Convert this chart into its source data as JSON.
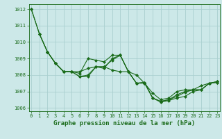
{
  "title": "Graphe pression niveau de la mer (hPa)",
  "background_color": "#cce8e8",
  "grid_color": "#aacfcf",
  "line_color": "#1a6b1a",
  "ylim": [
    1005.8,
    1012.3
  ],
  "xlim": [
    -0.3,
    23.3
  ],
  "yticks": [
    1006,
    1007,
    1008,
    1009,
    1010,
    1011,
    1012
  ],
  "xticks": [
    0,
    1,
    2,
    3,
    4,
    5,
    6,
    7,
    8,
    9,
    10,
    11,
    12,
    13,
    14,
    15,
    16,
    17,
    18,
    19,
    20,
    21,
    22,
    23
  ],
  "series": [
    {
      "x": [
        0,
        1,
        2,
        3,
        4,
        5,
        6,
        7,
        8,
        9,
        10,
        11,
        12,
        13,
        14,
        15,
        16,
        17,
        18,
        19,
        20,
        21,
        22,
        23
      ],
      "y": [
        1012.0,
        1010.5,
        1009.4,
        1008.7,
        1008.2,
        1008.2,
        1008.2,
        1008.4,
        1008.5,
        1008.5,
        1008.3,
        1008.2,
        1008.2,
        1008.0,
        1007.5,
        1006.9,
        1006.5,
        1006.6,
        1007.0,
        1007.1,
        1007.1,
        1007.1,
        1007.5,
        1007.6
      ],
      "marker": "D",
      "markersize": 2.0
    },
    {
      "x": [
        0,
        1,
        2,
        3,
        4,
        5,
        6,
        7,
        8,
        9,
        10,
        11,
        12,
        13,
        14,
        15,
        16,
        17,
        18,
        19,
        20,
        21,
        22,
        23
      ],
      "y": [
        1012.0,
        1010.5,
        1009.4,
        1008.7,
        1008.2,
        1008.2,
        1008.1,
        1009.0,
        1008.9,
        1008.8,
        1009.2,
        1009.2,
        1008.2,
        1007.5,
        1007.5,
        1006.6,
        1006.4,
        1006.5,
        1006.8,
        1007.0,
        1007.1,
        1007.35,
        1007.5,
        1007.6
      ],
      "marker": "D",
      "markersize": 2.0
    },
    {
      "x": [
        1,
        2,
        3,
        4,
        5,
        6,
        7,
        8,
        9,
        10,
        11,
        12,
        13,
        14,
        15,
        16,
        17,
        18,
        19,
        20,
        21,
        22,
        23
      ],
      "y": [
        1010.5,
        1009.4,
        1008.7,
        1008.2,
        1008.2,
        1007.9,
        1008.0,
        1008.5,
        1008.4,
        1009.0,
        1009.2,
        1008.2,
        1007.5,
        1007.55,
        1006.6,
        1006.4,
        1006.5,
        1006.7,
        1006.95,
        1007.1,
        1007.1,
        1007.5,
        1007.55
      ],
      "marker": "D",
      "markersize": 2.0
    },
    {
      "x": [
        2,
        3,
        4,
        5,
        6,
        7,
        8,
        9,
        10,
        11,
        12,
        13,
        14,
        15,
        16,
        17,
        18,
        19,
        20,
        21,
        22,
        23
      ],
      "y": [
        1009.4,
        1008.7,
        1008.2,
        1008.2,
        1007.9,
        1007.9,
        1008.5,
        1008.5,
        1008.9,
        1009.2,
        1008.2,
        1007.5,
        1007.55,
        1006.6,
        1006.35,
        1006.45,
        1006.6,
        1006.7,
        1007.0,
        1007.1,
        1007.5,
        1007.55
      ],
      "marker": "D",
      "markersize": 2.0
    }
  ],
  "font_color": "#1a6b1a",
  "title_fontsize": 6.5,
  "tick_fontsize": 5.0,
  "figwidth": 3.2,
  "figheight": 2.0,
  "dpi": 100
}
